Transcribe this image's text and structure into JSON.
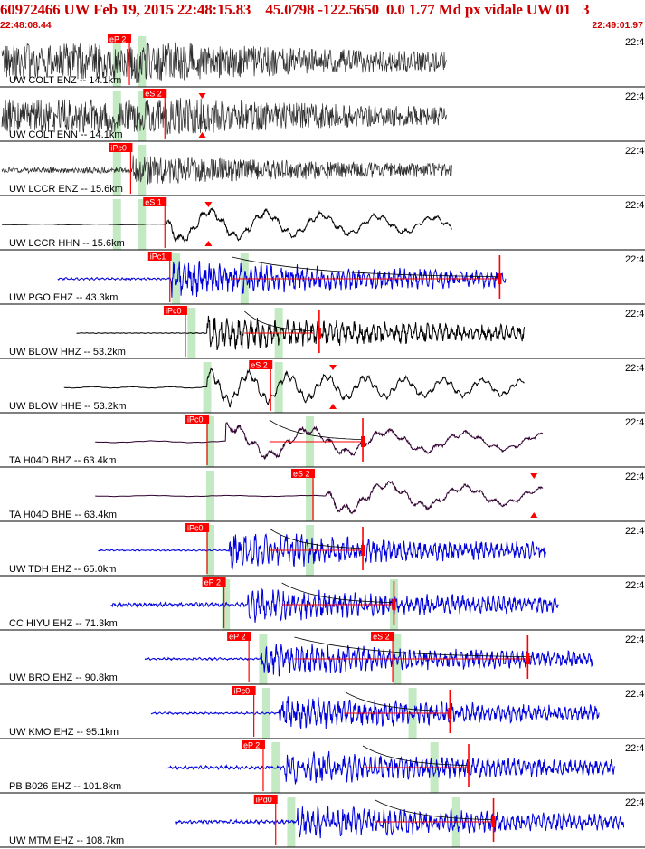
{
  "header": {
    "title": "60972466 UW Feb 19, 2015 22:48:15.83    45.0798 -122.5650  0.0 1.77 Md px vidale UW 01   3",
    "start_time": "22:48:08.44",
    "end_time": "22:49:01.97"
  },
  "colors": {
    "pick": "#ff0000",
    "window": "#b9e6b9",
    "black_trace": "#000000",
    "blue_trace": "#0000dd",
    "purple_trace": "#300030",
    "dark_trace": "#2a2a2a",
    "separator": "#000000",
    "label": "#000000"
  },
  "chart_data": {
    "type": "seismogram",
    "time_range": [
      "22:48:08.44",
      "22:49:01.97"
    ],
    "right_tick_label": "22:4",
    "traces": [
      {
        "label": "UW COLT ENZ -- 14.1km",
        "color": "dark",
        "start": 0.0,
        "end": 0.715,
        "amp": 0.8,
        "freq": 2.6,
        "noise": 1.0,
        "onset": 0.21,
        "picks": [
          {
            "text": "eP 2",
            "t": 0.205
          }
        ],
        "green": [
          0.185,
          0.225
        ],
        "coda": false,
        "pre_env": 1.0
      },
      {
        "label": "UW COLT ENN -- 14.1km",
        "color": "dark",
        "start": 0.0,
        "end": 0.715,
        "amp": 0.75,
        "freq": 2.6,
        "noise": 1.0,
        "onset": 0.265,
        "picks": [
          {
            "text": "eS 2",
            "t": 0.262
          }
        ],
        "green": [
          0.185,
          0.225
        ],
        "coda": false,
        "pre_env": 1.0,
        "triangles": [
          0.322
        ]
      },
      {
        "label": "UW LCCR ENZ -- 15.6km",
        "color": "dark",
        "start": 0.0,
        "end": 0.723,
        "amp": 0.55,
        "freq": 2.2,
        "noise": 0.45,
        "onset": 0.21,
        "picks": [
          {
            "text": "iPc0",
            "t": 0.207
          }
        ],
        "green": [
          0.185,
          0.225
        ],
        "coda": false,
        "pre_env": 0.5
      },
      {
        "label": "UW LCCR HHN -- 15.6km",
        "color": "black",
        "start": 0.0,
        "end": 0.723,
        "amp": 0.55,
        "freq": 0.7,
        "noise": 0.05,
        "onset": 0.265,
        "picks": [
          {
            "text": "eS 1",
            "t": 0.262
          }
        ],
        "green": [
          0.185,
          0.225
        ],
        "coda": false,
        "pre_env": 0.1,
        "triangles": [
          0.332
        ]
      },
      {
        "label": "UW PGO EHZ -- 43.3km",
        "color": "blue",
        "start": 0.09,
        "end": 0.81,
        "amp": 0.55,
        "freq": 1.9,
        "noise": 0.18,
        "onset": 0.272,
        "picks": [
          {
            "text": "iPc1",
            "t": 0.27
          }
        ],
        "green": [
          0.28,
          0.39
        ],
        "coda": true,
        "coda_start": 0.37,
        "coda_end": 0.8,
        "pre_env": 0.35,
        "marker": 0.8
      },
      {
        "label": "UW BLOW HHZ -- 53.2km",
        "color": "black",
        "start": 0.12,
        "end": 0.84,
        "amp": 0.55,
        "freq": 1.6,
        "noise": 0.06,
        "onset": 0.33,
        "picks": [
          {
            "text": "iPc0",
            "t": 0.295
          }
        ],
        "green": [
          0.305,
          0.445
        ],
        "coda": true,
        "coda_start": 0.39,
        "coda_end": 0.5,
        "pre_env": 0.12,
        "marker": 0.51
      },
      {
        "label": "UW BLOW HHE -- 53.2km",
        "color": "black",
        "start": 0.1,
        "end": 0.84,
        "amp": 0.55,
        "freq": 1.0,
        "noise": 0.06,
        "onset": 0.33,
        "picks": [
          {
            "text": "eS 2",
            "t": 0.432
          }
        ],
        "green": [
          0.33,
          0.445
        ],
        "coda": false,
        "pre_env": 0.5,
        "triangles": [
          0.532
        ]
      },
      {
        "label": "TA H04D BHZ -- 63.4km",
        "color": "purple",
        "start": 0.15,
        "end": 0.87,
        "amp": 0.55,
        "freq": 0.5,
        "noise": 0.05,
        "onset": 0.36,
        "picks": [
          {
            "text": "iPc0",
            "t": 0.33
          }
        ],
        "green": [
          0.335,
          0.495
        ],
        "coda": true,
        "coda_start": 0.43,
        "coda_end": 0.58,
        "pre_env": 0.8,
        "marker": 0.58
      },
      {
        "label": "TA H04D BHE -- 63.4km",
        "color": "purple",
        "start": 0.15,
        "end": 0.87,
        "amp": 0.55,
        "freq": 0.5,
        "noise": 0.05,
        "onset": 0.52,
        "picks": [
          {
            "text": "eS 2",
            "t": 0.5
          }
        ],
        "green": [
          0.335,
          0.495
        ],
        "coda": false,
        "pre_env": 0.35,
        "triangles": [
          0.855
        ]
      },
      {
        "label": "UW TDH EHZ -- 65.0km",
        "color": "blue",
        "start": 0.155,
        "end": 0.875,
        "amp": 0.55,
        "freq": 1.9,
        "noise": 0.12,
        "onset": 0.365,
        "picks": [
          {
            "text": "iPc0",
            "t": 0.33
          }
        ],
        "green": [
          0.335,
          0.495
        ],
        "coda": true,
        "coda_start": 0.43,
        "coda_end": 0.58,
        "pre_env": 0.25,
        "marker": 0.58
      },
      {
        "label": "CC HIYU EHZ -- 71.3km",
        "color": "blue",
        "start": 0.175,
        "end": 0.895,
        "amp": 0.5,
        "freq": 1.9,
        "noise": 0.3,
        "onset": 0.395,
        "picks": [
          {
            "text": "eP 2",
            "t": 0.357
          }
        ],
        "green": [
          0.36,
          0.63
        ],
        "coda": true,
        "coda_start": 0.45,
        "coda_end": 0.63,
        "pre_env": 0.45,
        "marker": 0.63
      },
      {
        "label": "UW BRO EHZ -- 90.8km",
        "color": "blue",
        "start": 0.23,
        "end": 0.95,
        "amp": 0.5,
        "freq": 1.9,
        "noise": 0.2,
        "onset": 0.415,
        "picks": [
          {
            "text": "eP 2",
            "t": 0.397
          },
          {
            "text": "eS 2",
            "t": 0.628
          }
        ],
        "green": [
          0.42,
          0.635
        ],
        "coda": true,
        "coda_start": 0.47,
        "coda_end": 0.85,
        "pre_env": 0.35,
        "marker": 0.845
      },
      {
        "label": "UW KMO EHZ -- 95.1km",
        "color": "blue",
        "start": 0.24,
        "end": 0.96,
        "amp": 0.5,
        "freq": 1.9,
        "noise": 0.2,
        "onset": 0.445,
        "picks": [
          {
            "text": "iPc0",
            "t": 0.405
          }
        ],
        "green": [
          0.425,
          0.66
        ],
        "coda": true,
        "coda_start": 0.55,
        "coda_end": 0.72,
        "pre_env": 0.3,
        "marker": 0.72
      },
      {
        "label": "PB B026 EHZ -- 101.8km",
        "color": "blue",
        "start": 0.265,
        "end": 0.985,
        "amp": 0.5,
        "freq": 1.9,
        "noise": 0.3,
        "onset": 0.455,
        "picks": [
          {
            "text": "eP 2",
            "t": 0.42
          }
        ],
        "green": [
          0.44,
          0.695
        ],
        "coda": true,
        "coda_start": 0.58,
        "coda_end": 0.75,
        "pre_env": 0.4,
        "marker": 0.75
      },
      {
        "label": "UW MTM EHZ -- 108.7km",
        "color": "blue",
        "start": 0.28,
        "end": 1.0,
        "amp": 0.5,
        "freq": 1.9,
        "noise": 0.3,
        "onset": 0.475,
        "picks": [
          {
            "text": "iPd0",
            "t": 0.44
          }
        ],
        "green": [
          0.465,
          0.73
        ],
        "coda": true,
        "coda_start": 0.6,
        "coda_end": 0.79,
        "pre_env": 0.4,
        "marker": 0.79
      }
    ]
  }
}
